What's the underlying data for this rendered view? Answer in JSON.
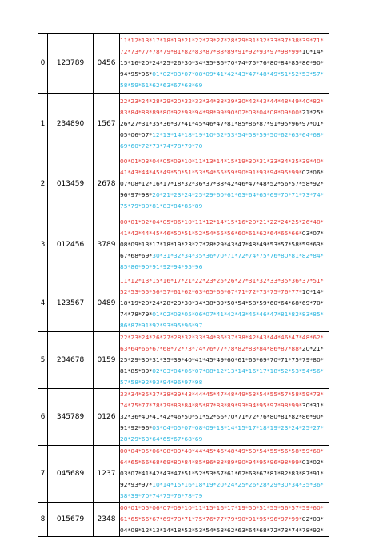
{
  "colors": {
    "red": "#e53935",
    "black": "#111111",
    "blue": "#29b6e0"
  },
  "rows": [
    {
      "index": "0",
      "digits": "123789",
      "code": "0456",
      "lines": [
        {
          "c": "red",
          "t": "11*12*13*17*18*19*21*22*23*27*28*29*31*32*33*37*38*39*71*"
        },
        {
          "c": "red",
          "t": "72*73*77*78*79*81*82*83*87*88*89*91*92*93*97*98*99*",
          "t2": "10*14*",
          "c2": "black"
        },
        {
          "c": "black",
          "t": "15*16*20*24*25*26*30*34*35*36*70*74*75*76*80*84*85*86*90*"
        },
        {
          "c": "black",
          "t": "94*95*96*",
          "t2": "01*02*03*07*08*09*41*42*43*47*48*49*51*52*53*57*",
          "c2": "blue"
        },
        {
          "c": "blue",
          "t": "58*59*61*62*63*67*68*69"
        }
      ]
    },
    {
      "index": "1",
      "digits": "234890",
      "code": "1567",
      "lines": [
        {
          "c": "red",
          "t": "22*23*24*28*29*20*32*33*34*38*39*30*42*43*44*48*49*40*82*"
        },
        {
          "c": "red",
          "t": "83*84*88*89*80*92*93*94*98*99*90*02*03*04*08*09*00*",
          "t2": "21*25*",
          "c2": "black"
        },
        {
          "c": "black",
          "t": "26*27*31*35*36*37*41*45*46*47*81*85*86*87*91*95*96*97*01*"
        },
        {
          "c": "black",
          "t": "05*06*07*",
          "t2": "12*13*14*18*19*10*52*53*54*58*59*50*62*63*64*68*",
          "c2": "blue"
        },
        {
          "c": "blue",
          "t": "69*60*72*73*74*78*79*70"
        }
      ]
    },
    {
      "index": "2",
      "digits": "013459",
      "code": "2678",
      "lines": [
        {
          "c": "red",
          "t": "00*01*03*04*05*09*10*11*13*14*15*19*30*31*33*34*35*39*40*"
        },
        {
          "c": "red",
          "t": "41*43*44*45*49*50*51*53*54*55*59*90*91*93*94*95*99*",
          "t2": "02*06*",
          "c2": "black"
        },
        {
          "c": "black",
          "t": "07*08*12*16*17*18*32*36*37*38*42*46*47*48*52*56*57*58*92*"
        },
        {
          "c": "black",
          "t": "96*97*98*",
          "t2": "20*21*23*24*25*29*60*61*63*64*65*69*70*71*73*74*",
          "c2": "blue"
        },
        {
          "c": "blue",
          "t": "75*79*80*81*83*84*85*89"
        }
      ]
    },
    {
      "index": "3",
      "digits": "012456",
      "code": "3789",
      "lines": [
        {
          "c": "red",
          "t": "00*01*02*04*05*06*10*11*12*14*15*16*20*21*22*24*25*26*40*"
        },
        {
          "c": "red",
          "t": "41*42*44*45*46*50*51*52*54*55*56*60*61*62*64*65*66*",
          "t2": "03*07*",
          "c2": "black"
        },
        {
          "c": "black",
          "t": "08*09*13*17*18*19*23*27*28*29*43*47*48*49*53*57*58*59*63*"
        },
        {
          "c": "black",
          "t": "67*68*69*",
          "t2": "30*31*32*34*35*36*70*71*72*74*75*76*80*81*82*84*",
          "c2": "blue"
        },
        {
          "c": "blue",
          "t": "85*86*90*91*92*94*95*96"
        }
      ]
    },
    {
      "index": "4",
      "digits": "123567",
      "code": "0489",
      "lines": [
        {
          "c": "red",
          "t": "11*12*13*15*16*17*21*22*23*25*26*27*31*32*33*35*36*37*51*"
        },
        {
          "c": "red",
          "t": "52*53*55*56*57*61*62*63*65*66*67*71*72*73*75*76*77*",
          "t2": "10*14*",
          "c2": "black"
        },
        {
          "c": "black",
          "t": "18*19*20*24*28*29*30*34*38*39*50*54*58*59*60*64*68*69*70*"
        },
        {
          "c": "black",
          "t": "74*78*79*",
          "t2": "01*02*03*05*06*07*41*42*43*45*46*47*81*82*83*85*",
          "c2": "blue"
        },
        {
          "c": "blue",
          "t": "86*87*91*92*93*95*96*97"
        }
      ]
    },
    {
      "index": "5",
      "digits": "234678",
      "code": "0159",
      "lines": [
        {
          "c": "red",
          "t": "22*23*24*26*27*28*32*33*34*36*37*38*42*43*44*46*47*48*62*"
        },
        {
          "c": "red",
          "t": "63*64*66*67*68*72*73*74*76*77*78*82*83*84*86*87*88*",
          "t2": "20*21*",
          "c2": "black"
        },
        {
          "c": "black",
          "t": "25*29*30*31*35*39*40*41*45*49*60*61*65*69*70*71*75*79*80*"
        },
        {
          "c": "black",
          "t": "81*85*89*",
          "t2": "02*03*04*06*07*08*12*13*14*16*17*18*52*53*54*56*",
          "c2": "blue"
        },
        {
          "c": "blue",
          "t": "57*58*92*93*94*96*97*98"
        }
      ]
    },
    {
      "index": "6",
      "digits": "345789",
      "code": "0126",
      "lines": [
        {
          "c": "red",
          "t": "33*34*35*37*38*39*43*44*45*47*48*49*53*54*55*57*58*59*73*"
        },
        {
          "c": "red",
          "t": "74*75*77*78*79*83*84*85*87*88*89*93*94*95*97*98*99*",
          "t2": "30*31*",
          "c2": "black"
        },
        {
          "c": "black",
          "t": "32*36*40*41*42*46*50*51*52*56*70*71*72*76*80*81*82*86*90*"
        },
        {
          "c": "black",
          "t": "91*92*96*",
          "t2": "03*04*05*07*08*09*13*14*15*17*18*19*23*24*25*27*",
          "c2": "blue"
        },
        {
          "c": "blue",
          "t": "28*29*63*64*65*67*68*69"
        }
      ]
    },
    {
      "index": "7",
      "digits": "045689",
      "code": "1237",
      "lines": [
        {
          "c": "red",
          "t": "00*04*05*06*08*09*40*44*45*46*48*49*50*54*55*56*58*59*60*"
        },
        {
          "c": "red",
          "t": "64*65*66*68*69*80*84*85*86*88*89*90*94*95*96*98*99*",
          "t2": "01*02*",
          "c2": "black"
        },
        {
          "c": "black",
          "t": "03*07*41*42*43*47*51*52*53*57*61*62*63*67*81*82*83*87*91*"
        },
        {
          "c": "black",
          "t": "92*93*97*",
          "t2": "10*14*15*16*18*19*20*24*25*26*28*29*30*34*35*36*",
          "c2": "blue"
        },
        {
          "c": "blue",
          "t": "38*39*70*74*75*76*78*79"
        }
      ]
    },
    {
      "index": "8",
      "digits": "015679",
      "code": "2348",
      "lines": [
        {
          "c": "red",
          "t": "00*01*05*06*07*09*10*11*15*16*17*19*50*51*55*56*57*59*60*"
        },
        {
          "c": "red",
          "t": "61*65*66*67*69*70*71*75*76*77*79*90*91*95*96*97*99*",
          "t2": "02*03*",
          "c2": "black"
        },
        {
          "c": "black",
          "t": "04*08*12*13*14*18*52*53*54*58*62*63*64*68*72*73*74*78*92*"
        }
      ]
    }
  ]
}
